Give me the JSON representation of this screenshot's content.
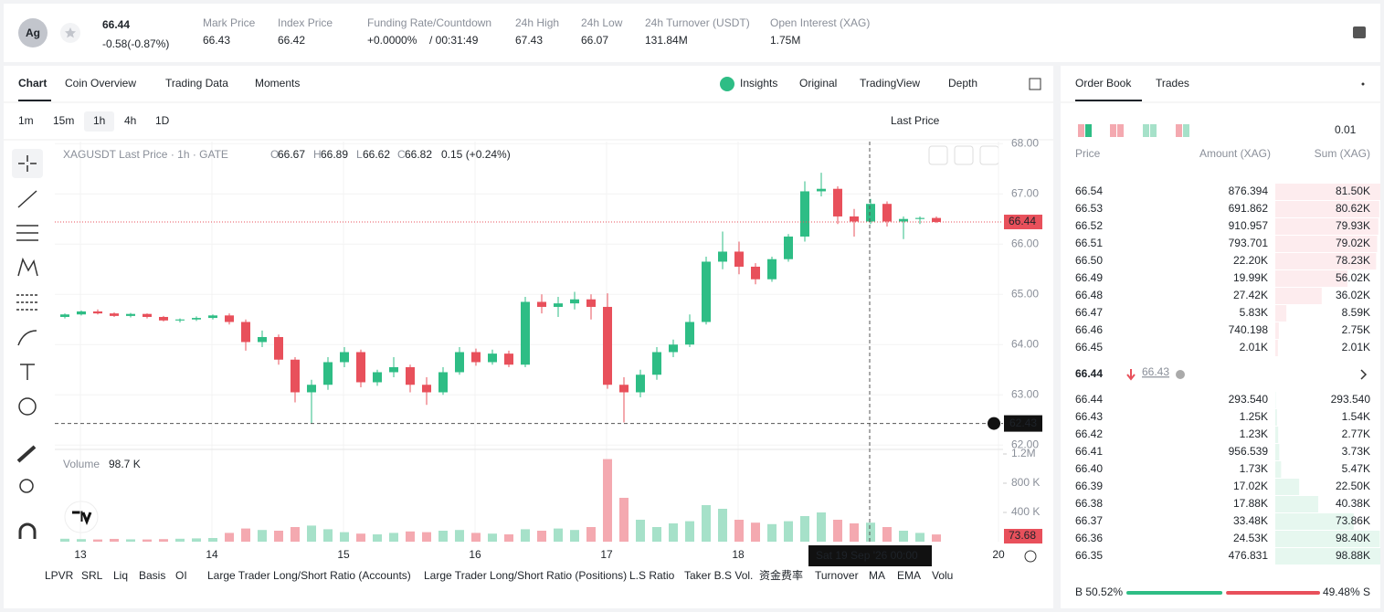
{
  "header": {
    "symbol_icon": "Ag",
    "price": "66.44",
    "change": "-0.58(-0.87%)",
    "stats": [
      {
        "label": "Mark Price",
        "value": "66.43"
      },
      {
        "label": "Index Price",
        "value": "66.42"
      },
      {
        "label": "Funding Rate/Countdown",
        "value": "+0.0000%",
        "extra": "/ 00:31:49"
      },
      {
        "label": "24h High",
        "value": "67.43"
      },
      {
        "label": "24h Low",
        "value": "66.07"
      },
      {
        "label": "24h Turnover (USDT)",
        "value": "131.84M"
      },
      {
        "label": "Open Interest (XAG)",
        "value": "1.75M"
      }
    ]
  },
  "chart_tabs": [
    "Chart",
    "Coin Overview",
    "Trading Data",
    "Moments"
  ],
  "view_tabs": [
    "Insights",
    "Original",
    "TradingView",
    "Depth"
  ],
  "intervals": [
    "1m",
    "15m",
    "1h",
    "4h",
    "1D"
  ],
  "price_source": "Last Price",
  "chart": {
    "type": "candlestick",
    "symbol": "XAGUSDT Last Price · 1h · GATE",
    "ohlc_legend": [
      {
        "k": "O",
        "v": "66.67"
      },
      {
        "k": "H",
        "v": "66.89"
      },
      {
        "k": "L",
        "v": "66.62"
      },
      {
        "k": "C",
        "v": "66.82"
      }
    ],
    "legend_change": "0.15 (+0.24%)",
    "candles": [
      [
        64.55,
        64.62,
        64.52,
        64.6
      ],
      [
        64.6,
        64.68,
        64.58,
        64.66
      ],
      [
        64.66,
        64.7,
        64.6,
        64.62
      ],
      [
        64.62,
        64.64,
        64.55,
        64.57
      ],
      [
        64.57,
        64.63,
        64.54,
        64.61
      ],
      [
        64.61,
        64.62,
        64.52,
        64.55
      ],
      [
        64.55,
        64.57,
        64.46,
        64.48
      ],
      [
        64.48,
        64.52,
        64.44,
        64.5
      ],
      [
        64.5,
        64.56,
        64.47,
        64.53
      ],
      [
        64.53,
        64.6,
        64.5,
        64.58
      ],
      [
        64.58,
        64.62,
        64.4,
        64.45
      ],
      [
        64.45,
        64.5,
        63.88,
        64.05
      ],
      [
        64.05,
        64.28,
        63.95,
        64.15
      ],
      [
        64.15,
        64.2,
        63.6,
        63.7
      ],
      [
        63.7,
        63.75,
        62.85,
        63.05
      ],
      [
        63.05,
        63.3,
        62.43,
        63.2
      ],
      [
        63.2,
        63.75,
        63.1,
        63.65
      ],
      [
        63.65,
        63.95,
        63.55,
        63.85
      ],
      [
        63.85,
        63.9,
        63.15,
        63.25
      ],
      [
        63.25,
        63.5,
        63.18,
        63.45
      ],
      [
        63.45,
        63.75,
        63.35,
        63.55
      ],
      [
        63.55,
        63.6,
        63.05,
        63.2
      ],
      [
        63.2,
        63.35,
        62.8,
        63.05
      ],
      [
        63.05,
        63.55,
        63.0,
        63.45
      ],
      [
        63.45,
        63.95,
        63.4,
        63.85
      ],
      [
        63.85,
        63.92,
        63.58,
        63.65
      ],
      [
        63.65,
        63.9,
        63.6,
        63.82
      ],
      [
        63.82,
        63.88,
        63.55,
        63.6
      ],
      [
        63.6,
        64.95,
        63.55,
        64.85
      ],
      [
        64.85,
        65.0,
        64.62,
        64.75
      ],
      [
        64.75,
        64.95,
        64.55,
        64.82
      ],
      [
        64.82,
        65.05,
        64.7,
        64.9
      ],
      [
        64.9,
        65.0,
        64.5,
        64.75
      ],
      [
        64.75,
        65.02,
        63.12,
        63.2
      ],
      [
        63.2,
        63.35,
        62.45,
        63.05
      ],
      [
        63.05,
        63.5,
        62.95,
        63.4
      ],
      [
        63.4,
        63.95,
        63.3,
        63.85
      ],
      [
        63.85,
        64.1,
        63.75,
        64.0
      ],
      [
        64.0,
        64.6,
        63.95,
        64.45
      ],
      [
        64.45,
        65.75,
        64.4,
        65.65
      ],
      [
        65.65,
        66.25,
        65.5,
        65.85
      ],
      [
        65.85,
        66.05,
        65.4,
        65.55
      ],
      [
        65.55,
        65.62,
        65.2,
        65.3
      ],
      [
        65.3,
        65.75,
        65.25,
        65.7
      ],
      [
        65.7,
        66.2,
        65.65,
        66.15
      ],
      [
        66.15,
        67.25,
        66.05,
        67.05
      ],
      [
        67.05,
        67.42,
        66.95,
        67.1
      ],
      [
        67.1,
        67.15,
        66.4,
        66.55
      ],
      [
        66.55,
        66.7,
        66.15,
        66.45
      ],
      [
        66.45,
        66.9,
        66.4,
        66.8
      ],
      [
        66.8,
        66.85,
        66.35,
        66.45
      ],
      [
        66.45,
        66.55,
        66.1,
        66.5
      ],
      [
        66.5,
        66.55,
        66.4,
        66.52
      ],
      [
        66.52,
        66.55,
        66.42,
        66.44
      ]
    ],
    "volume": [
      40,
      35,
      30,
      38,
      32,
      30,
      35,
      40,
      45,
      50,
      120,
      180,
      160,
      150,
      200,
      220,
      170,
      130,
      110,
      100,
      120,
      140,
      130,
      150,
      160,
      120,
      110,
      100,
      170,
      150,
      180,
      160,
      200,
      1130,
      600,
      300,
      200,
      250,
      280,
      500,
      450,
      300,
      260,
      240,
      280,
      350,
      400,
      300,
      250,
      260,
      200,
      150,
      120,
      98.7
    ],
    "ylim": [
      61.95,
      68.04
    ],
    "yticks": [
      {
        "value": 68,
        "label": "68.00"
      },
      {
        "value": 67,
        "label": "67.00"
      },
      {
        "value": 66,
        "label": "66.00"
      },
      {
        "value": 65,
        "label": "65.00"
      },
      {
        "value": 64,
        "label": "64.00"
      },
      {
        "value": 63,
        "label": "63.00"
      },
      {
        "value": 62,
        "label": "62.00"
      }
    ],
    "volume_ylim": [
      0,
      1250
    ],
    "volume_yticks": [
      {
        "value": 1200,
        "label": "1.2M"
      },
      {
        "value": 800,
        "label": "800 K"
      },
      {
        "value": 400,
        "label": "400 K"
      }
    ],
    "x_labels": [
      "13",
      "14",
      "15",
      "16",
      "17",
      "18",
      "20"
    ],
    "last_price_label": "66.44",
    "cursor_price": "62.43",
    "cursor_time": "Sat 19 Sep '26   00:00",
    "volume_title": "Volume",
    "volume_value": "98.7 K",
    "volume_axis_label": "73.68",
    "grid": true
  },
  "indicators": [
    "LPVR",
    "SRL",
    "Liq",
    "Basis",
    "OI",
    "Large Trader Long/Short Ratio (Accounts)",
    "Large Trader Long/Short Ratio (Positions)",
    "L.S Ratio",
    "Taker B.S Vol.",
    "资金费率",
    "Turnover",
    "MA",
    "EMA",
    "Volu"
  ],
  "order_book": {
    "tabs": [
      "Order Book",
      "Trades"
    ],
    "precision": "0.01",
    "columns": [
      "Price",
      "Amount (XAG)",
      "Sum (XAG)"
    ],
    "asks": {
      "price": [
        "66.54",
        "66.53",
        "66.52",
        "66.51",
        "66.50",
        "66.49",
        "66.48",
        "66.47",
        "66.46",
        "66.45"
      ],
      "amount": [
        "876.394",
        "691.862",
        "910.957",
        "793.701",
        "22.20K",
        "19.99K",
        "27.42K",
        "5.83K",
        "740.198",
        "2.01K"
      ],
      "sum": [
        81.5,
        80.62,
        79.93,
        79.02,
        78.23,
        56.02,
        36.02,
        8.59,
        2.75,
        2.01
      ],
      "sum_labels": [
        "81.50K",
        "80.62K",
        "79.93K",
        "79.02K",
        "78.23K",
        "56.02K",
        "36.02K",
        "8.59K",
        "2.75K",
        "2.01K"
      ]
    },
    "last": "66.44",
    "mark": "66.43",
    "bids": {
      "price": [
        "66.44",
        "66.43",
        "66.42",
        "66.41",
        "66.40",
        "66.39",
        "66.38",
        "66.37",
        "66.36",
        "66.35"
      ],
      "amount": [
        "293.540",
        "1.25K",
        "1.23K",
        "956.539",
        "1.73K",
        "17.02K",
        "17.88K",
        "33.48K",
        "24.53K",
        "476.831"
      ],
      "sum": [
        0.29354,
        1.54,
        2.77,
        3.73,
        5.47,
        22.5,
        40.38,
        73.86,
        98.4,
        98.88
      ],
      "sum_labels": [
        "293.540",
        "1.54K",
        "2.77K",
        "3.73K",
        "5.47K",
        "22.50K",
        "40.38K",
        "73.86K",
        "98.40K",
        "98.88K"
      ]
    },
    "buy_pct": 50.52,
    "buy_label": "B 50.52%",
    "sell_pct": 49.48,
    "sell_label": "49.48% S"
  }
}
